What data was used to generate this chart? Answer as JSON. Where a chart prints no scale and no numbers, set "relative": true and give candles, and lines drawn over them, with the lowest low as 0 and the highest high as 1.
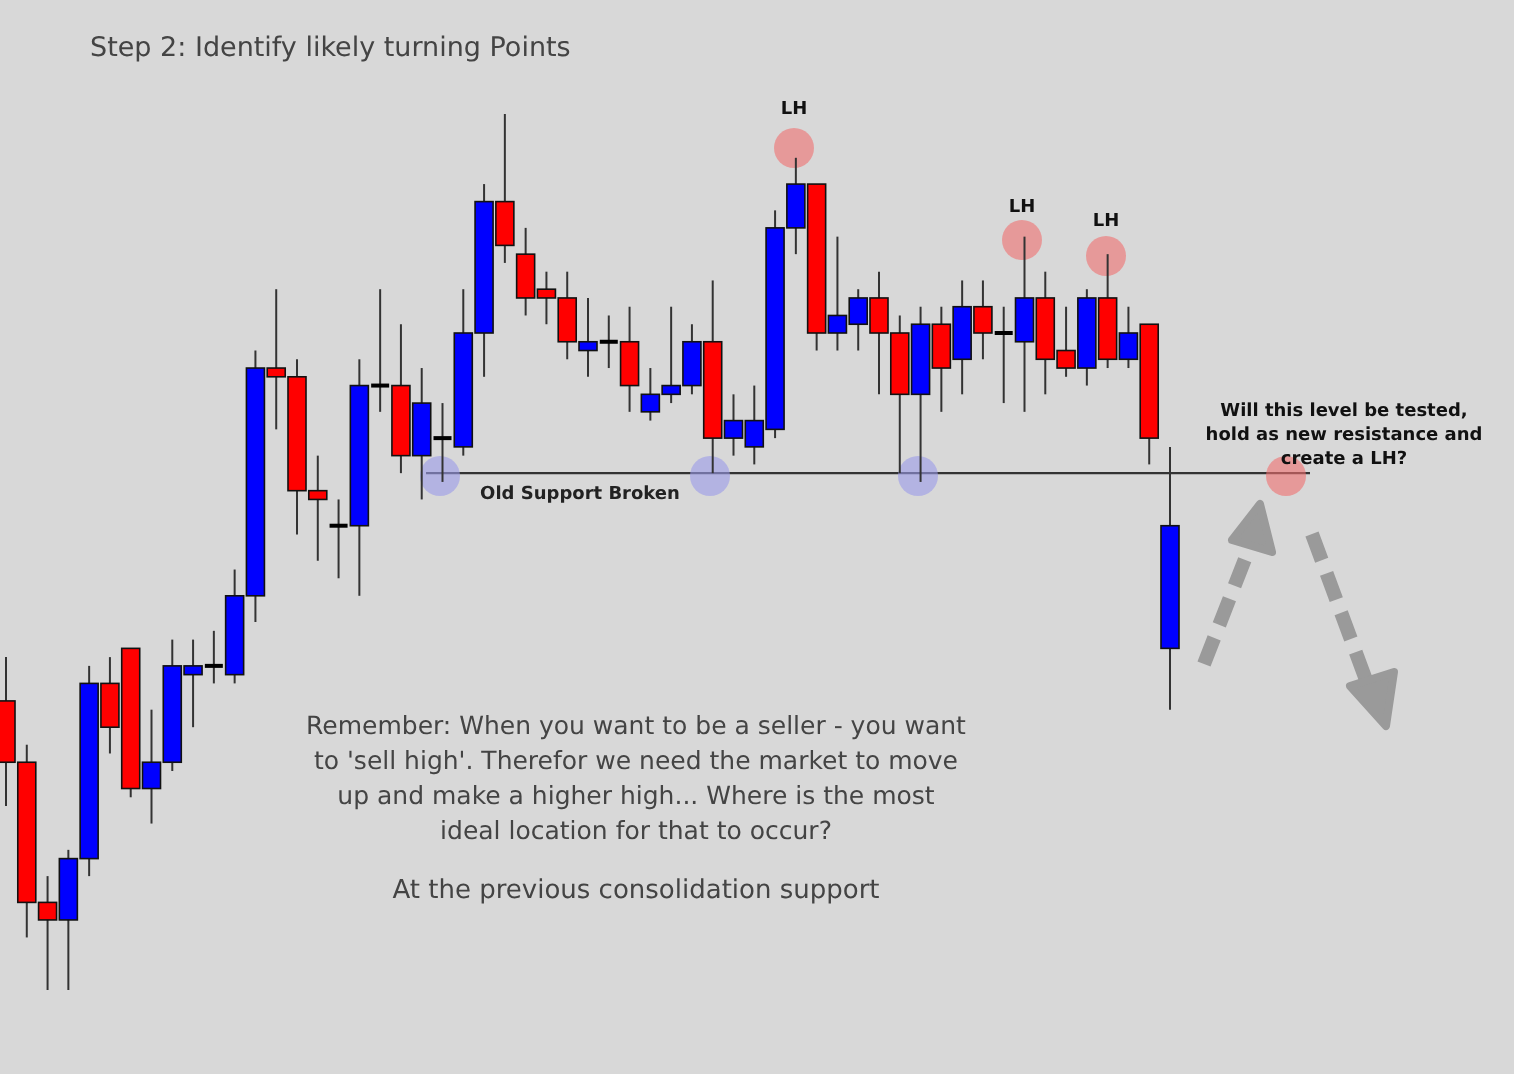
{
  "chart_data": {
    "type": "candlestick",
    "relative": true,
    "title": "Step 2: Identify likely turning Points",
    "categories": [
      null,
      null,
      null,
      null,
      null,
      null,
      null,
      null,
      null,
      null,
      null,
      null,
      null,
      null,
      null,
      null,
      null,
      null,
      null,
      null,
      null,
      null,
      null,
      null,
      null,
      null,
      null,
      null,
      null,
      null,
      null,
      null,
      null,
      null,
      null,
      null,
      null,
      null,
      null,
      null,
      null,
      null,
      null,
      null,
      null,
      null,
      null,
      null,
      null,
      null,
      null,
      null,
      null,
      null,
      null,
      null,
      null
    ],
    "ohlc": [
      [
        0.33,
        0.38,
        0.21,
        0.26
      ],
      [
        0.26,
        0.28,
        0.06,
        0.1
      ],
      [
        0.1,
        0.13,
        0,
        0.08
      ],
      [
        0.08,
        0.16,
        0,
        0.15
      ],
      [
        0.15,
        0.37,
        0.13,
        0.35
      ],
      [
        0.35,
        0.38,
        0.27,
        0.3
      ],
      [
        0.39,
        0.39,
        0.22,
        0.23
      ],
      [
        0.23,
        0.32,
        0.19,
        0.26
      ],
      [
        0.26,
        0.4,
        0.25,
        0.37
      ],
      [
        0.36,
        0.4,
        0.3,
        0.37
      ],
      [
        0.37,
        0.41,
        0.35,
        0.37
      ],
      [
        0.36,
        0.48,
        0.35,
        0.45
      ],
      [
        0.45,
        0.73,
        0.42,
        0.71
      ],
      [
        0.71,
        0.8,
        0.64,
        0.7
      ],
      [
        0.7,
        0.72,
        0.52,
        0.57
      ],
      [
        0.57,
        0.61,
        0.49,
        0.56
      ],
      [
        0.53,
        0.56,
        0.47,
        0.53
      ],
      [
        0.53,
        0.72,
        0.45,
        0.69
      ],
      [
        0.69,
        0.8,
        0.66,
        0.69
      ],
      [
        0.69,
        0.76,
        0.59,
        0.61
      ],
      [
        0.61,
        0.71,
        0.56,
        0.67
      ],
      [
        0.63,
        0.67,
        0.58,
        0.63
      ],
      [
        0.62,
        0.8,
        0.61,
        0.75
      ],
      [
        0.75,
        0.92,
        0.7,
        0.9
      ],
      [
        0.9,
        1,
        0.83,
        0.85
      ],
      [
        0.84,
        0.87,
        0.77,
        0.79
      ],
      [
        0.8,
        0.82,
        0.76,
        0.79
      ],
      [
        0.79,
        0.82,
        0.72,
        0.74
      ],
      [
        0.73,
        0.79,
        0.7,
        0.74
      ],
      [
        0.74,
        0.77,
        0.71,
        0.74
      ],
      [
        0.74,
        0.78,
        0.66,
        0.69
      ],
      [
        0.66,
        0.71,
        0.65,
        0.68
      ],
      [
        0.68,
        0.78,
        0.67,
        0.69
      ],
      [
        0.69,
        0.76,
        0.68,
        0.74
      ],
      [
        0.74,
        0.81,
        0.59,
        0.63
      ],
      [
        0.63,
        0.68,
        0.61,
        0.65
      ],
      [
        0.62,
        0.69,
        0.6,
        0.65
      ],
      [
        0.64,
        0.89,
        0.63,
        0.87
      ],
      [
        0.87,
        0.95,
        0.84,
        0.92
      ],
      [
        0.92,
        0.92,
        0.73,
        0.75
      ],
      [
        0.75,
        0.86,
        0.73,
        0.77
      ],
      [
        0.76,
        0.8,
        0.73,
        0.79
      ],
      [
        0.79,
        0.82,
        0.68,
        0.75
      ],
      [
        0.75,
        0.77,
        0.59,
        0.68
      ],
      [
        0.68,
        0.78,
        0.58,
        0.76
      ],
      [
        0.76,
        0.78,
        0.66,
        0.71
      ],
      [
        0.72,
        0.81,
        0.68,
        0.78
      ],
      [
        0.78,
        0.81,
        0.72,
        0.75
      ],
      [
        0.75,
        0.78,
        0.67,
        0.75
      ],
      [
        0.74,
        0.86,
        0.66,
        0.79
      ],
      [
        0.79,
        0.82,
        0.68,
        0.72
      ],
      [
        0.73,
        0.78,
        0.7,
        0.71
      ],
      [
        0.71,
        0.8,
        0.69,
        0.79
      ],
      [
        0.79,
        0.84,
        0.71,
        0.72
      ],
      [
        0.72,
        0.78,
        0.71,
        0.75
      ],
      [
        0.76,
        0.76,
        0.6,
        0.63
      ],
      [
        0.39,
        0.62,
        0.32,
        0.53
      ]
    ],
    "colors": [
      "#ff0000",
      "#ff0000",
      "#ff0000",
      "#0000ff",
      "#0000ff",
      "#ff0000",
      "#ff0000",
      "#0000ff",
      "#0000ff",
      "#0000ff",
      "#000000",
      "#0000ff",
      "#0000ff",
      "#ff0000",
      "#ff0000",
      "#ff0000",
      "#000000",
      "#0000ff",
      "#000000",
      "#ff0000",
      "#0000ff",
      "#000000",
      "#0000ff",
      "#0000ff",
      "#ff0000",
      "#ff0000",
      "#ff0000",
      "#ff0000",
      "#0000ff",
      "#000000",
      "#ff0000",
      "#0000ff",
      "#0000ff",
      "#0000ff",
      "#ff0000",
      "#0000ff",
      "#0000ff",
      "#0000ff",
      "#0000ff",
      "#ff0000",
      "#0000ff",
      "#0000ff",
      "#ff0000",
      "#ff0000",
      "#0000ff",
      "#ff0000",
      "#0000ff",
      "#ff0000",
      "#000000",
      "#0000ff",
      "#ff0000",
      "#ff0000",
      "#0000ff",
      "#ff0000",
      "#0000ff",
      "#ff0000",
      "#0000ff"
    ],
    "ref_lines": [
      {
        "axis": "y",
        "value": 0.59,
        "label": "Old Support Broken",
        "color": "#333333"
      }
    ],
    "annotations": [
      "LH",
      "LH",
      "LH",
      "Will this level be tested, hold as new resistance and create a LH?",
      "Remember: When you want to be a seller - you want to 'sell high'. Therefor we need the market to move up and make a higher high... Where is the most ideal location for that to occur?",
      "At the previous consolidation support"
    ]
  }
}
